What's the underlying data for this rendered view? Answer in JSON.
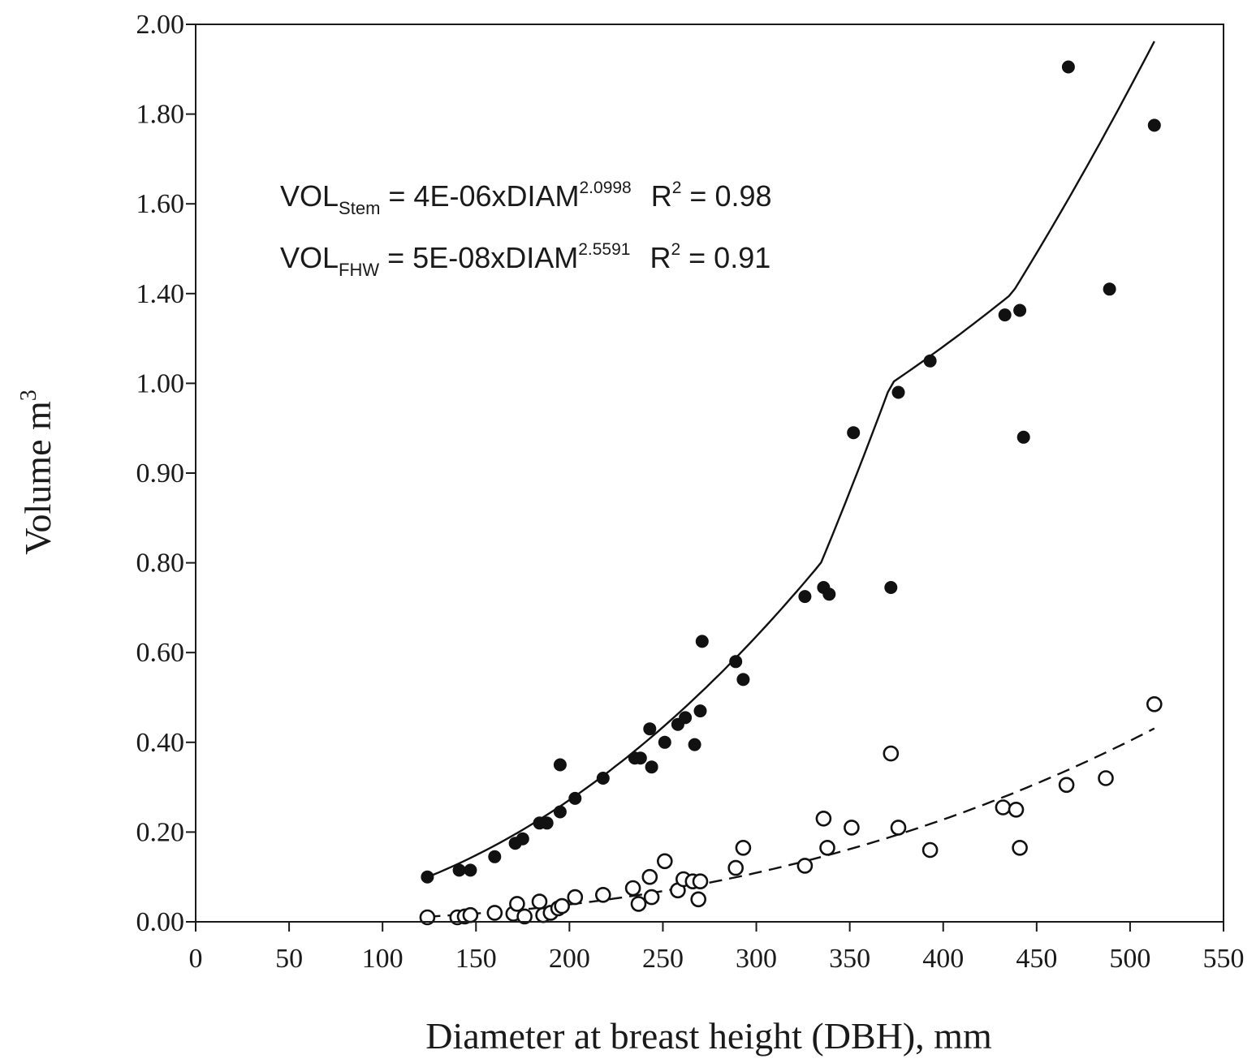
{
  "chart_data": {
    "type": "scatter",
    "title": "",
    "xlabel": "Diameter at breast height (DBH), mm",
    "ylabel": "Volume m",
    "ylabel_sup": "3",
    "xlim": [
      0,
      550
    ],
    "x_ticks": [
      0,
      50,
      100,
      150,
      200,
      250,
      300,
      350,
      400,
      450,
      500,
      550
    ],
    "x_tick_labels": [
      "0",
      "50",
      "100",
      "150",
      "200",
      "250",
      "300",
      "350",
      "400",
      "450",
      "500",
      "550"
    ],
    "y_tick_labels": [
      "0.00",
      "0.20",
      "0.40",
      "0.60",
      "0.80",
      "0.90",
      "1.00",
      "1.40",
      "1.60",
      "1.80",
      "2.00"
    ],
    "equations": [
      {
        "lhs": "VOL",
        "sub": "Stem",
        "mid": " = 4E-06xDIAM",
        "exp": "2.0998",
        "r_label": "R",
        "r_sup": "2",
        "r_value": " = 0.98"
      },
      {
        "lhs": "VOL",
        "sub": "FHW",
        "mid": " = 5E-08xDIAM",
        "exp": "2.5591",
        "r_label": "R",
        "r_sup": "2",
        "r_value": " = 0.91"
      }
    ],
    "series": [
      {
        "name": "VOL Stem",
        "marker": "filled-circle",
        "fit": {
          "type": "power",
          "a": 4e-06,
          "b": 2.0998,
          "x_range": [
            124,
            513
          ],
          "line": "solid"
        },
        "points": [
          [
            124,
            0.1
          ],
          [
            141,
            0.115
          ],
          [
            147,
            0.115
          ],
          [
            160,
            0.145
          ],
          [
            171,
            0.175
          ],
          [
            175,
            0.185
          ],
          [
            184,
            0.22
          ],
          [
            188,
            0.22
          ],
          [
            195,
            0.245
          ],
          [
            195,
            0.35
          ],
          [
            203,
            0.275
          ],
          [
            218,
            0.32
          ],
          [
            235,
            0.365
          ],
          [
            238,
            0.365
          ],
          [
            243,
            0.43
          ],
          [
            244,
            0.345
          ],
          [
            251,
            0.4
          ],
          [
            258,
            0.44
          ],
          [
            262,
            0.455
          ],
          [
            267,
            0.395
          ],
          [
            270,
            0.47
          ],
          [
            271,
            0.625
          ],
          [
            289,
            0.58
          ],
          [
            293,
            0.54
          ],
          [
            326,
            0.725
          ],
          [
            336,
            0.745
          ],
          [
            339,
            0.73
          ],
          [
            352,
            0.945
          ],
          [
            372,
            0.745
          ],
          [
            376,
            0.99
          ],
          [
            393,
            1.1
          ],
          [
            433,
            1.305
          ],
          [
            441,
            1.325
          ],
          [
            443,
            0.94
          ],
          [
            467,
            1.905
          ],
          [
            489,
            1.41
          ],
          [
            513,
            1.775
          ]
        ]
      },
      {
        "name": "VOL FHW",
        "marker": "open-circle",
        "fit": {
          "type": "power",
          "a": 5e-08,
          "b": 2.5591,
          "x_range": [
            124,
            513
          ],
          "line": "dashed"
        },
        "points": [
          [
            124,
            0.01
          ],
          [
            140,
            0.01
          ],
          [
            144,
            0.012
          ],
          [
            147,
            0.015
          ],
          [
            160,
            0.02
          ],
          [
            170,
            0.018
          ],
          [
            172,
            0.04
          ],
          [
            176,
            0.012
          ],
          [
            184,
            0.045
          ],
          [
            186,
            0.015
          ],
          [
            190,
            0.02
          ],
          [
            194,
            0.03
          ],
          [
            196,
            0.035
          ],
          [
            203,
            0.055
          ],
          [
            218,
            0.06
          ],
          [
            234,
            0.075
          ],
          [
            237,
            0.04
          ],
          [
            243,
            0.1
          ],
          [
            244,
            0.055
          ],
          [
            251,
            0.135
          ],
          [
            258,
            0.07
          ],
          [
            261,
            0.095
          ],
          [
            266,
            0.09
          ],
          [
            269,
            0.05
          ],
          [
            270,
            0.09
          ],
          [
            289,
            0.12
          ],
          [
            293,
            0.165
          ],
          [
            326,
            0.125
          ],
          [
            336,
            0.23
          ],
          [
            338,
            0.165
          ],
          [
            351,
            0.21
          ],
          [
            372,
            0.375
          ],
          [
            376,
            0.21
          ],
          [
            393,
            0.16
          ],
          [
            432,
            0.255
          ],
          [
            439,
            0.25
          ],
          [
            441,
            0.165
          ],
          [
            466,
            0.305
          ],
          [
            487,
            0.32
          ],
          [
            513,
            0.485
          ]
        ]
      }
    ]
  }
}
